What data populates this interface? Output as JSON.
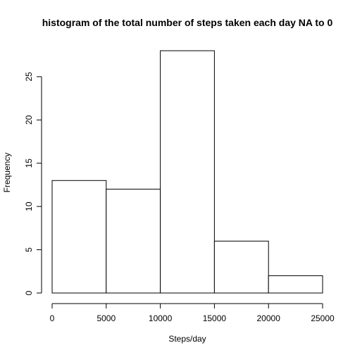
{
  "chart_data": {
    "type": "bar",
    "title": "histogram of the total number of steps taken each day NA to 0",
    "xlabel": "Steps/day",
    "ylabel": "Frequency",
    "bins": [
      {
        "from": 0,
        "to": 5000,
        "value": 13
      },
      {
        "from": 5000,
        "to": 10000,
        "value": 12
      },
      {
        "from": 10000,
        "to": 15000,
        "value": 28
      },
      {
        "from": 15000,
        "to": 20000,
        "value": 6
      },
      {
        "from": 20000,
        "to": 25000,
        "value": 2
      }
    ],
    "xlim": [
      0,
      25000
    ],
    "ylim": [
      0,
      28
    ],
    "x_ticks": [
      0,
      5000,
      10000,
      15000,
      20000,
      25000
    ],
    "y_ticks": [
      0,
      5,
      10,
      15,
      20,
      25
    ],
    "grid": false,
    "legend": "none"
  }
}
